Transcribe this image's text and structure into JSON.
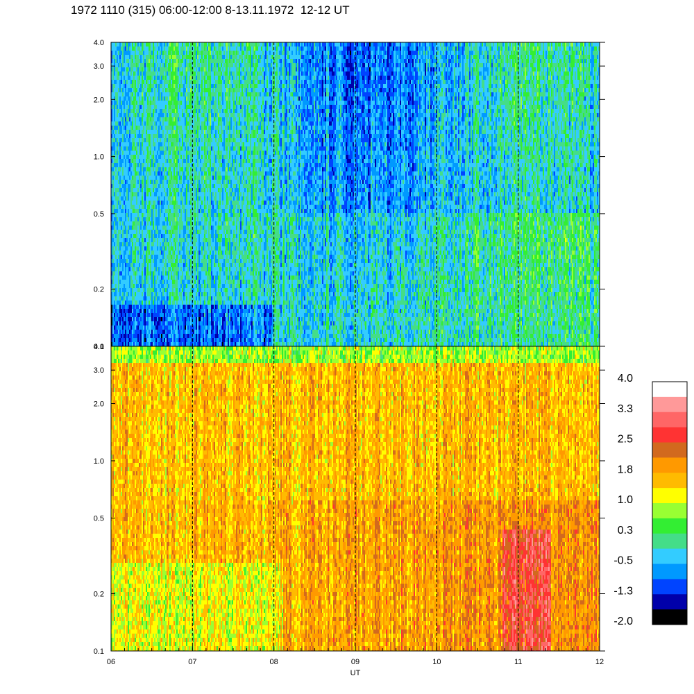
{
  "title": "1972 1110 (315) 06:00-12:00 8-13.11.1972  12-12 UT",
  "chart_data": {
    "type": "heatmap",
    "xlabel": "UT",
    "x_ticks": [
      "06",
      "07",
      "08",
      "09",
      "10",
      "11",
      "12"
    ],
    "x_range": [
      6,
      12
    ],
    "y_scale": "log",
    "y_range": [
      0.1,
      4.0
    ],
    "panels": [
      {
        "y_ticks": [
          {
            "value": 4.0,
            "label": "4.0"
          },
          {
            "value": 3.0,
            "label": "3.0"
          },
          {
            "value": 2.0,
            "label": "2.0"
          },
          {
            "value": 1.0,
            "label": "1.0"
          },
          {
            "value": 0.5,
            "label": "0.5"
          },
          {
            "value": 0.2,
            "label": "0.2"
          },
          {
            "value": 0.1,
            "label": "0.1"
          }
        ],
        "base_level": -0.4
      },
      {
        "y_ticks": [
          {
            "value": 4.0,
            "label": "4.0"
          },
          {
            "value": 3.0,
            "label": "3.0"
          },
          {
            "value": 2.0,
            "label": "2.0"
          },
          {
            "value": 1.0,
            "label": "1.0"
          },
          {
            "value": 0.5,
            "label": "0.5"
          },
          {
            "value": 0.2,
            "label": "0.2"
          },
          {
            "value": 0.1,
            "label": "0.1"
          }
        ],
        "base_level": 1.6
      }
    ],
    "colorbar": {
      "colors": [
        "#ffffff",
        "#ff9999",
        "#ff6666",
        "#ff3333",
        "#d2691e",
        "#ff9900",
        "#ffbb00",
        "#ffff00",
        "#99ff33",
        "#33ee33",
        "#44dd88",
        "#33ccff",
        "#0099ff",
        "#0044ff",
        "#0000aa",
        "#000000"
      ],
      "labels": [
        "4.0",
        "3.3",
        "2.5",
        "1.8",
        "1.0",
        "0.3",
        "-0.5",
        "-1.3",
        "-2.0"
      ],
      "min": -2.0,
      "max": 4.0
    }
  }
}
